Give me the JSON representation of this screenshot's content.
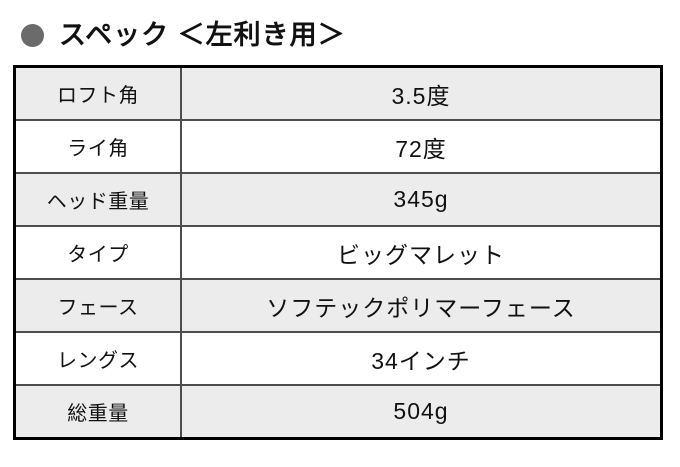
{
  "header": {
    "bullet_icon": "circle-bullet-icon",
    "title": "スペック ＜左利き用＞"
  },
  "table": {
    "rows": [
      {
        "label": "ロフト角",
        "value": "3.5度"
      },
      {
        "label": "ライ角",
        "value": "72度"
      },
      {
        "label": "ヘッド重量",
        "value": "345g"
      },
      {
        "label": "タイプ",
        "value": "ビッグマレット"
      },
      {
        "label": "フェース",
        "value": "ソフテックポリマーフェース"
      },
      {
        "label": "レングス",
        "value": "34インチ"
      },
      {
        "label": "総重量",
        "value": "504g"
      }
    ]
  },
  "colors": {
    "row_alt_bg": "#ececec",
    "row_bg": "#ffffff",
    "inner_border": "#4d4d4d",
    "outer_border": "#000000",
    "bullet": "#6b6b6b",
    "text": "#111111"
  }
}
